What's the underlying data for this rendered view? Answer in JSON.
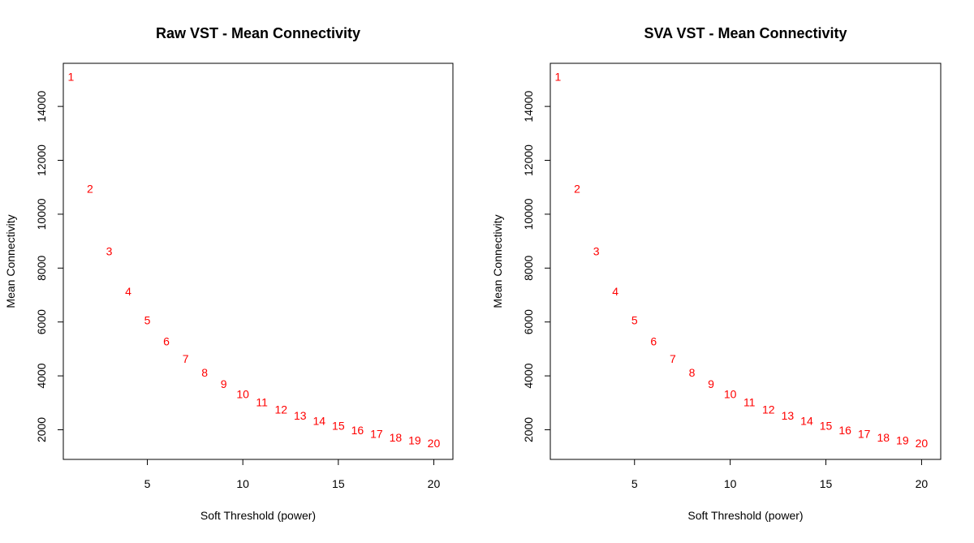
{
  "chart_data": [
    {
      "type": "scatter",
      "title": "Raw VST - Mean Connectivity",
      "xlabel": "Soft Threshold (power)",
      "ylabel": "Mean Connectivity",
      "xlim": [
        0.6,
        21
      ],
      "ylim": [
        900,
        15600
      ],
      "xticks": [
        5,
        10,
        15,
        20
      ],
      "yticks": [
        2000,
        4000,
        6000,
        8000,
        10000,
        12000,
        14000
      ],
      "point_color": "#ff0000",
      "points": [
        {
          "x": 1,
          "y": 15100,
          "label": "1"
        },
        {
          "x": 2,
          "y": 10950,
          "label": "2"
        },
        {
          "x": 3,
          "y": 8630,
          "label": "3"
        },
        {
          "x": 4,
          "y": 7130,
          "label": "4"
        },
        {
          "x": 5,
          "y": 6070,
          "label": "5"
        },
        {
          "x": 6,
          "y": 5280,
          "label": "6"
        },
        {
          "x": 7,
          "y": 4640,
          "label": "7"
        },
        {
          "x": 8,
          "y": 4130,
          "label": "8"
        },
        {
          "x": 9,
          "y": 3700,
          "label": "9"
        },
        {
          "x": 10,
          "y": 3330,
          "label": "10"
        },
        {
          "x": 11,
          "y": 3020,
          "label": "11"
        },
        {
          "x": 12,
          "y": 2760,
          "label": "12"
        },
        {
          "x": 13,
          "y": 2530,
          "label": "13"
        },
        {
          "x": 14,
          "y": 2330,
          "label": "14"
        },
        {
          "x": 15,
          "y": 2150,
          "label": "15"
        },
        {
          "x": 16,
          "y": 1990,
          "label": "16"
        },
        {
          "x": 17,
          "y": 1850,
          "label": "17"
        },
        {
          "x": 18,
          "y": 1720,
          "label": "18"
        },
        {
          "x": 19,
          "y": 1610,
          "label": "19"
        },
        {
          "x": 20,
          "y": 1500,
          "label": "20"
        }
      ]
    },
    {
      "type": "scatter",
      "title": "SVA VST - Mean Connectivity",
      "xlabel": "Soft Threshold (power)",
      "ylabel": "Mean Connectivity",
      "xlim": [
        0.6,
        21
      ],
      "ylim": [
        900,
        15600
      ],
      "xticks": [
        5,
        10,
        15,
        20
      ],
      "yticks": [
        2000,
        4000,
        6000,
        8000,
        10000,
        12000,
        14000
      ],
      "point_color": "#ff0000",
      "points": [
        {
          "x": 1,
          "y": 15100,
          "label": "1"
        },
        {
          "x": 2,
          "y": 10950,
          "label": "2"
        },
        {
          "x": 3,
          "y": 8630,
          "label": "3"
        },
        {
          "x": 4,
          "y": 7130,
          "label": "4"
        },
        {
          "x": 5,
          "y": 6070,
          "label": "5"
        },
        {
          "x": 6,
          "y": 5280,
          "label": "6"
        },
        {
          "x": 7,
          "y": 4640,
          "label": "7"
        },
        {
          "x": 8,
          "y": 4130,
          "label": "8"
        },
        {
          "x": 9,
          "y": 3700,
          "label": "9"
        },
        {
          "x": 10,
          "y": 3330,
          "label": "10"
        },
        {
          "x": 11,
          "y": 3020,
          "label": "11"
        },
        {
          "x": 12,
          "y": 2760,
          "label": "12"
        },
        {
          "x": 13,
          "y": 2530,
          "label": "13"
        },
        {
          "x": 14,
          "y": 2330,
          "label": "14"
        },
        {
          "x": 15,
          "y": 2150,
          "label": "15"
        },
        {
          "x": 16,
          "y": 1990,
          "label": "16"
        },
        {
          "x": 17,
          "y": 1850,
          "label": "17"
        },
        {
          "x": 18,
          "y": 1720,
          "label": "18"
        },
        {
          "x": 19,
          "y": 1610,
          "label": "19"
        },
        {
          "x": 20,
          "y": 1500,
          "label": "20"
        }
      ]
    }
  ]
}
